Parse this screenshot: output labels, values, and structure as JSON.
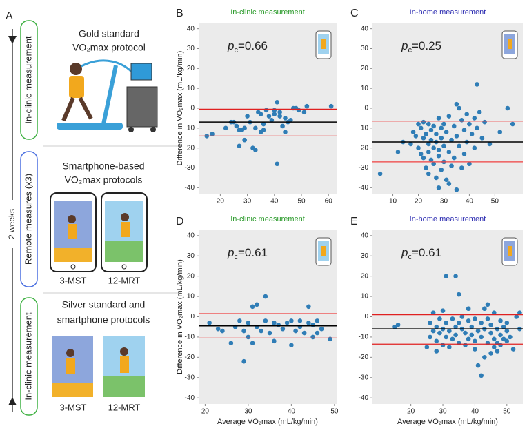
{
  "panel_a": {
    "label": "A",
    "top_box": "In-clinic measurement",
    "middle_box": "Remote measures (x3)",
    "bottom_box": "In-clinic measurement",
    "duration": "2 weeks",
    "sections": [
      {
        "lines": [
          "Gold standard",
          "VO₂max protocol"
        ]
      },
      {
        "lines": [
          "Smartphone-based",
          "VO₂max protocols"
        ],
        "captions": [
          "3-MST",
          "12-MRT"
        ]
      },
      {
        "lines": [
          "Silver standard and",
          "smartphone protocols"
        ],
        "captions": [
          "3-MST",
          "12-MRT"
        ]
      }
    ]
  },
  "chart_data": [
    {
      "type": "scatter",
      "panel": "B",
      "title": "In-clinic measurement",
      "title_color": "#2a9a2a",
      "annotation": [
        "p",
        "c",
        "=0.66"
      ],
      "y_label": "Difference in VO₂max (mL/kg/min)",
      "color": "#2f7db6",
      "xlim": [
        12,
        63
      ],
      "xticks": [
        20,
        30,
        40,
        50,
        60
      ],
      "ylim": [
        -43,
        43
      ],
      "yticks": [
        -40,
        -30,
        -20,
        -10,
        0,
        10,
        20,
        30,
        40
      ],
      "x": [
        15,
        17,
        22,
        24,
        25,
        26,
        27,
        27,
        28,
        29,
        29,
        30,
        31,
        32,
        33,
        33,
        34,
        35,
        35,
        36,
        36,
        37,
        38,
        39,
        40,
        40,
        41,
        41,
        42,
        42,
        43,
        44,
        44,
        45,
        46,
        47,
        48,
        49,
        51,
        52,
        61
      ],
      "values": [
        -14,
        -13,
        -10,
        -7,
        -7,
        -9,
        -19,
        -11,
        -11,
        -10,
        -16,
        -4,
        -7,
        -20,
        -10,
        -21,
        -2,
        -3,
        -12,
        -8,
        -11,
        -1,
        -4,
        -6,
        -1,
        -3,
        3,
        -28,
        -2,
        -4,
        -9,
        -5,
        -12,
        -7,
        -6,
        0,
        0,
        -1,
        -2,
        1,
        1
      ],
      "reference_lines": [
        {
          "value": -0.5,
          "color": "#e02020"
        },
        {
          "value": -7,
          "color": "#000000"
        },
        {
          "value": -14,
          "color": "#f04040"
        }
      ]
    },
    {
      "type": "scatter",
      "panel": "C",
      "title": "In-home measurement",
      "title_color": "#2a2ab0",
      "annotation": [
        "p",
        "c",
        "=0.25"
      ],
      "color": "#2f7db6",
      "xlim": [
        2,
        61
      ],
      "xticks": [
        10,
        20,
        30,
        40,
        50
      ],
      "ylim": [
        -43,
        43
      ],
      "yticks": [
        -40,
        -30,
        -20,
        -10,
        0,
        10,
        20,
        30,
        40
      ],
      "x": [
        5,
        12,
        14,
        17,
        18,
        19,
        20,
        20,
        21,
        21,
        22,
        22,
        22,
        23,
        23,
        24,
        24,
        24,
        24,
        25,
        25,
        25,
        26,
        26,
        26,
        27,
        27,
        27,
        28,
        28,
        28,
        28,
        29,
        29,
        29,
        30,
        30,
        30,
        31,
        31,
        32,
        32,
        32,
        33,
        33,
        34,
        34,
        35,
        35,
        35,
        36,
        36,
        37,
        37,
        38,
        38,
        39,
        39,
        40,
        40,
        41,
        42,
        42,
        43,
        43,
        44,
        45,
        46,
        48,
        52,
        55,
        57
      ],
      "values": [
        -33,
        -22,
        -17,
        -18,
        -12,
        -14,
        -8,
        -20,
        -10,
        -23,
        -7,
        -15,
        -25,
        -13,
        -30,
        -8,
        -18,
        -22,
        -33,
        -11,
        -16,
        -26,
        -9,
        -20,
        -28,
        -13,
        -17,
        -35,
        -5,
        -21,
        -24,
        -40,
        -10,
        -15,
        -31,
        -8,
        -19,
        -27,
        -12,
        -36,
        -4,
        -22,
        -38,
        -16,
        -29,
        -9,
        -25,
        2,
        -14,
        -41,
        0,
        -19,
        -6,
        -30,
        -11,
        -23,
        -3,
        -17,
        -8,
        -28,
        -13,
        -5,
        -20,
        12,
        -10,
        -2,
        -15,
        -7,
        -18,
        -12,
        0,
        -8
      ],
      "reference_lines": [
        {
          "value": -6.5,
          "color": "#f04040"
        },
        {
          "value": -17,
          "color": "#000000"
        },
        {
          "value": -27,
          "color": "#f04040"
        }
      ]
    },
    {
      "type": "scatter",
      "panel": "D",
      "title": "In-clinic measurement",
      "title_color": "#2a9a2a",
      "annotation": [
        "p",
        "c",
        "=0.61"
      ],
      "y_label": "Difference in VO₂max (mL/kg/min)",
      "x_label": "Average VO₂max (mL/kg/min)",
      "color": "#2f7db6",
      "xlim": [
        18.5,
        50.5
      ],
      "xticks": [
        20,
        30,
        40,
        50
      ],
      "ylim": [
        -43,
        43
      ],
      "yticks": [
        -40,
        -30,
        -20,
        -10,
        0,
        10,
        20,
        30,
        40
      ],
      "x": [
        21,
        23,
        24,
        26,
        27,
        28,
        29,
        29,
        30,
        30,
        31,
        31,
        32,
        32,
        33,
        34,
        34,
        35,
        36,
        36,
        37,
        38,
        39,
        40,
        40,
        41,
        42,
        42,
        43,
        44,
        44,
        45,
        45,
        46,
        46,
        47,
        49
      ],
      "values": [
        -3,
        -6,
        -7,
        -13,
        -5,
        -2,
        -22,
        -7,
        -3,
        -10,
        5,
        -13,
        6,
        -5,
        -7,
        -2,
        10,
        -8,
        -3,
        -12,
        -4,
        -6,
        -3,
        -2,
        -14,
        -7,
        -5,
        -2,
        -8,
        -3,
        5,
        -10,
        -4,
        -2,
        -8,
        -6,
        -11
      ],
      "reference_lines": [
        {
          "value": 1.5,
          "color": "#f04040"
        },
        {
          "value": -4.5,
          "color": "#000000"
        },
        {
          "value": -10.5,
          "color": "#f04040"
        }
      ]
    },
    {
      "type": "scatter",
      "panel": "E",
      "title": "In-home measurement",
      "title_color": "#2a2ab0",
      "annotation": [
        "p",
        "c",
        "=0.61"
      ],
      "x_label": "Average VO₂max (mL/kg/min)",
      "color": "#2f7db6",
      "xlim": [
        8,
        55
      ],
      "xticks": [
        20,
        30,
        40,
        50
      ],
      "ylim": [
        -43,
        43
      ],
      "yticks": [
        -40,
        -30,
        -20,
        -10,
        0,
        10,
        20,
        30,
        40
      ],
      "x": [
        15,
        16,
        25,
        26,
        26,
        27,
        27,
        28,
        28,
        28,
        29,
        29,
        30,
        30,
        30,
        31,
        31,
        31,
        32,
        32,
        33,
        33,
        34,
        34,
        34,
        35,
        35,
        35,
        36,
        36,
        37,
        37,
        38,
        38,
        38,
        39,
        39,
        40,
        40,
        40,
        41,
        41,
        42,
        42,
        42,
        43,
        43,
        43,
        44,
        44,
        44,
        45,
        45,
        45,
        46,
        46,
        46,
        47,
        47,
        47,
        48,
        48,
        48,
        49,
        49,
        50,
        50,
        50,
        51,
        52,
        53,
        54,
        54
      ],
      "values": [
        -5,
        -4,
        -15,
        -3,
        -10,
        -7,
        2,
        -5,
        -12,
        -17,
        -1,
        -8,
        3,
        -14,
        -6,
        20,
        -3,
        -10,
        -7,
        -15,
        -1,
        -11,
        20,
        -5,
        -9,
        -13,
        11,
        -3,
        -6,
        0,
        -8,
        -14,
        -2,
        -11,
        4,
        -5,
        -9,
        -1,
        -12,
        -16,
        -7,
        -24,
        -3,
        -10,
        -29,
        -20,
        -6,
        4,
        6,
        -13,
        -1,
        -8,
        -18,
        -4,
        -11,
        -15,
        2,
        -6,
        -13,
        -17,
        -9,
        -2,
        -14,
        -5,
        -11,
        -7,
        -3,
        -12,
        -10,
        -16,
        0,
        2,
        -6
      ],
      "reference_lines": [
        {
          "value": 1,
          "color": "#e02020"
        },
        {
          "value": -6,
          "color": "#000000"
        },
        {
          "value": -13.5,
          "color": "#e02020"
        }
      ]
    }
  ]
}
